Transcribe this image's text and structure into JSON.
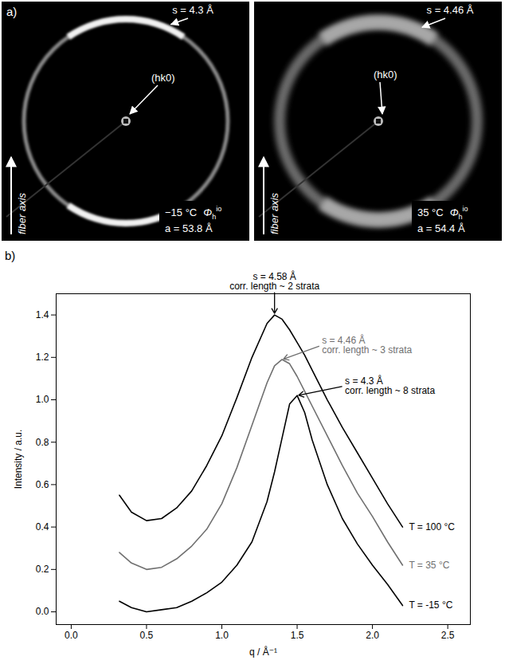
{
  "panel_a": {
    "label": "a)",
    "images": [
      {
        "ring_label": "s = 4.3 Å",
        "center_label": "(hk0)",
        "axis_label": "fiber axis",
        "temperature": "−15 °C",
        "phase": {
          "symbol": "Φ",
          "subscript": "h",
          "superscript": "io"
        },
        "lattice": "a = 53.8 Å"
      },
      {
        "ring_label": "s = 4.46 Å",
        "center_label": "(hk0)",
        "axis_label": "fiber axis",
        "temperature": "35 °C",
        "phase": {
          "symbol": "Φ",
          "subscript": "h",
          "superscript": "io"
        },
        "lattice": "a = 54.4 Å"
      }
    ]
  },
  "chart_data": {
    "type": "line",
    "label": "b)",
    "x_label": "q / Å⁻¹",
    "y_label": "Intensity / a.u.",
    "x": [
      0.32,
      0.4,
      0.5,
      0.6,
      0.7,
      0.8,
      0.9,
      1.0,
      1.1,
      1.2,
      1.3,
      1.35,
      1.4,
      1.45,
      1.5,
      1.55,
      1.6,
      1.7,
      1.8,
      1.9,
      2.0,
      2.1,
      2.2
    ],
    "xlim": [
      -0.1,
      2.65
    ],
    "xticks": [
      {
        "value": 0,
        "label": "0.0"
      },
      {
        "value": 0.5,
        "label": "0.5"
      },
      {
        "value": 1,
        "label": "1.0"
      },
      {
        "value": 1.5,
        "label": "1.5"
      },
      {
        "value": 2,
        "label": "2.0"
      },
      {
        "value": 2.5,
        "label": "2.5"
      }
    ],
    "ylim": [
      -0.06,
      1.5
    ],
    "yticks": [
      {
        "value": 0,
        "label": "0.0"
      },
      {
        "value": 0.2,
        "label": "0.2"
      },
      {
        "value": 0.4,
        "label": "0.4"
      },
      {
        "value": 0.6,
        "label": "0.6"
      },
      {
        "value": 0.8,
        "label": "0.8"
      },
      {
        "value": 1,
        "label": "1.0"
      },
      {
        "value": 1.2,
        "label": "1.2"
      },
      {
        "value": 1.4,
        "label": "1.4"
      }
    ],
    "series": [
      {
        "name": "T = 100 °C",
        "color": "#000000",
        "values": [
          0.55,
          0.47,
          0.43,
          0.44,
          0.49,
          0.57,
          0.69,
          0.83,
          1.01,
          1.2,
          1.36,
          1.4,
          1.38,
          1.33,
          1.27,
          1.21,
          1.14,
          1.0,
          0.87,
          0.75,
          0.63,
          0.51,
          0.4
        ],
        "annotation": [
          "s = 4.58 Å",
          "corr. length ~ 2 strata"
        ]
      },
      {
        "name": "T = 35 °C",
        "color": "#707070",
        "values": [
          0.28,
          0.23,
          0.2,
          0.21,
          0.25,
          0.31,
          0.39,
          0.51,
          0.68,
          0.88,
          1.08,
          1.16,
          1.19,
          1.17,
          1.11,
          1.04,
          0.97,
          0.83,
          0.69,
          0.56,
          0.45,
          0.33,
          0.22
        ],
        "annotation": [
          "s = 4.46 Å",
          "corr. length ~ 3 strata"
        ]
      },
      {
        "name": "T = -15 °C",
        "color": "#000000",
        "values": [
          0.05,
          0.02,
          0.0,
          0.01,
          0.02,
          0.05,
          0.09,
          0.14,
          0.22,
          0.33,
          0.52,
          0.66,
          0.82,
          0.98,
          1.02,
          0.94,
          0.81,
          0.6,
          0.44,
          0.32,
          0.22,
          0.13,
          0.03
        ],
        "annotation": [
          "s = 4.3 Å",
          "corr. length ~ 8 strata"
        ]
      }
    ]
  }
}
